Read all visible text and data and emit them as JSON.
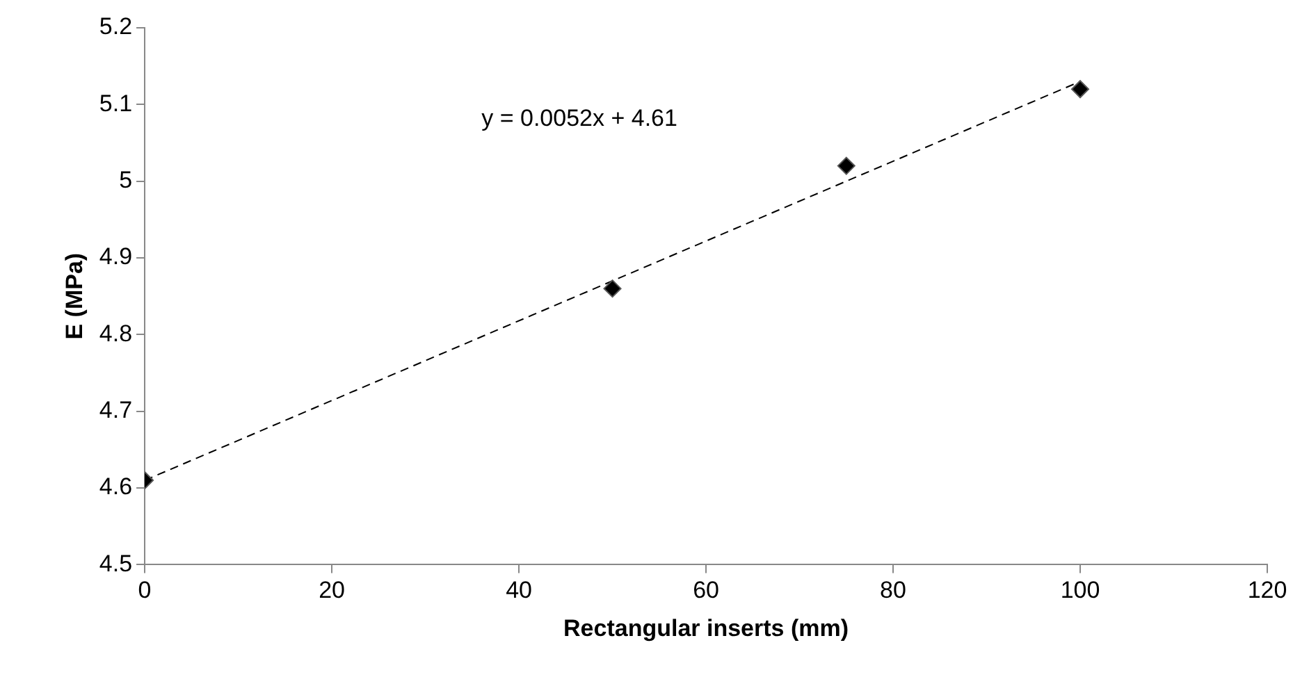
{
  "chart_data": {
    "type": "scatter",
    "xlabel": "Rectangular inserts (mm)",
    "ylabel": "E (MPa)",
    "annotations": [
      "y = 0.0052x + 4.61"
    ],
    "series": [
      {
        "type": "scatter",
        "x": [
          0,
          50,
          75,
          100
        ],
        "values": [
          4.61,
          4.86,
          5.02,
          5.12
        ],
        "color": "#000000",
        "marker": "diamond"
      },
      {
        "type": "line",
        "x": [
          0,
          100
        ],
        "values": [
          4.61,
          5.13
        ],
        "color": "#000000",
        "line_style": "dashed",
        "marker": "none"
      }
    ],
    "xlim": [
      0,
      120
    ],
    "xticks": [
      0,
      20,
      40,
      60,
      80,
      100,
      120
    ],
    "ylim": [
      4.5,
      5.2
    ],
    "yticks": [
      4.5,
      4.6,
      4.7,
      4.8,
      4.9,
      5,
      5.1,
      5.2
    ],
    "grid": false,
    "legend": false
  }
}
